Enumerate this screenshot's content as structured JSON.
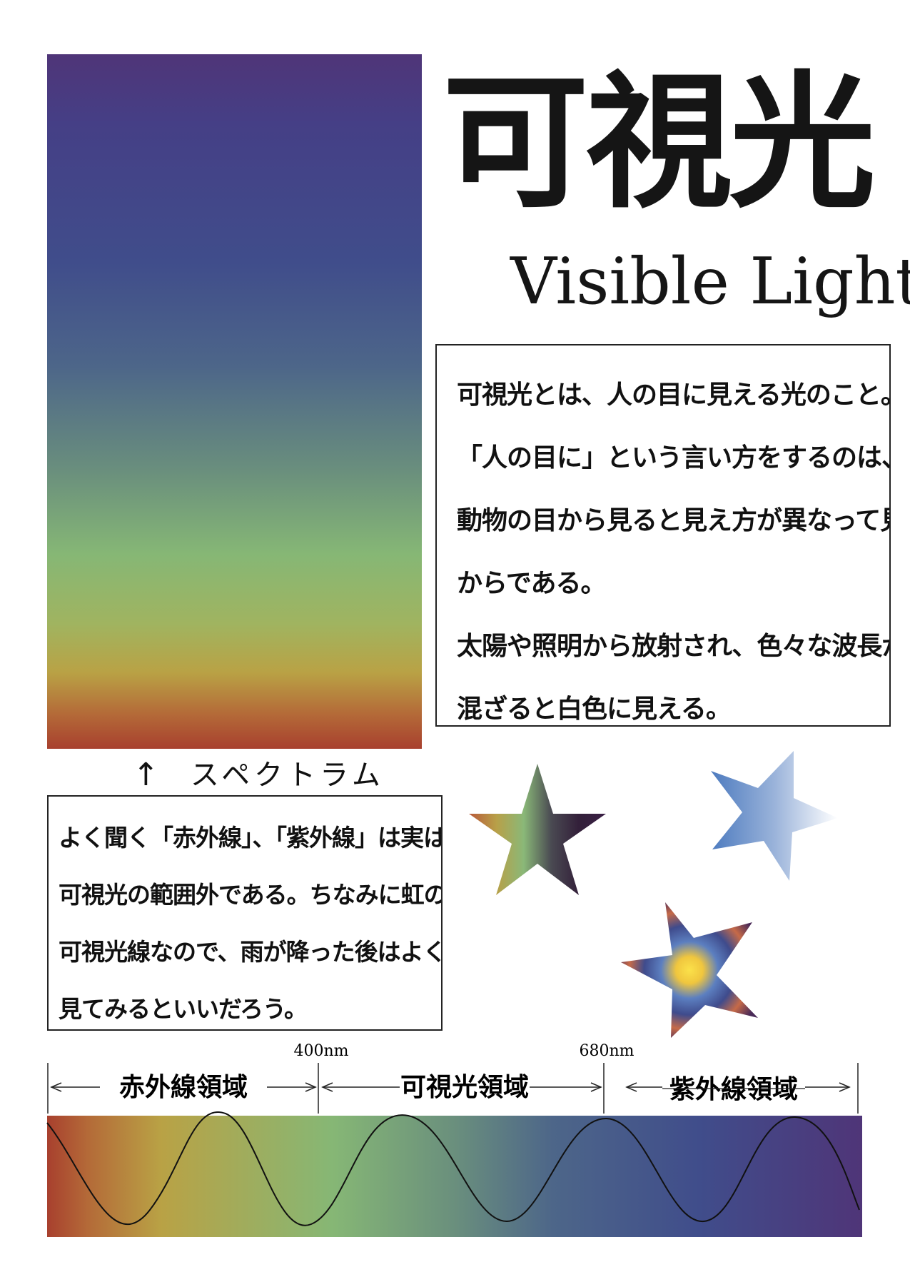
{
  "title": {
    "japanese": "可視光",
    "english": "Visible Light"
  },
  "description": {
    "lines": [
      "可視光とは、人の目に見える光のこと。",
      "「人の目に」という言い方をするのは、",
      "動物の目から見ると見え方が異なって見える",
      "からである。",
      "太陽や照明から放射され、色々な波長が",
      "混ざると白色に見える。"
    ]
  },
  "spectrum_caption": {
    "arrow": "↑",
    "label": "スペクトラム"
  },
  "note": {
    "lines": [
      "よく聞く「赤外線」、「紫外線」は実は",
      "可視光の範囲外である。ちなみに虹の七色は",
      "可視光線なので、雨が降った後はよく",
      "見てみるといいだろう。"
    ]
  },
  "wavelength_diagram": {
    "markers": [
      "400nm",
      "680nm"
    ],
    "regions": [
      "赤外線領域",
      "可視光領域",
      "紫外線領域"
    ]
  },
  "colors": {
    "spectrum_red": "#a8402e",
    "spectrum_orange": "#b46a38",
    "spectrum_yellow": "#b9a245",
    "spectrum_green": "#86b775",
    "spectrum_teal": "#6a8f7d",
    "spectrum_blue": "#404d8b",
    "spectrum_violet": "#4f3578",
    "text": "#151515"
  }
}
